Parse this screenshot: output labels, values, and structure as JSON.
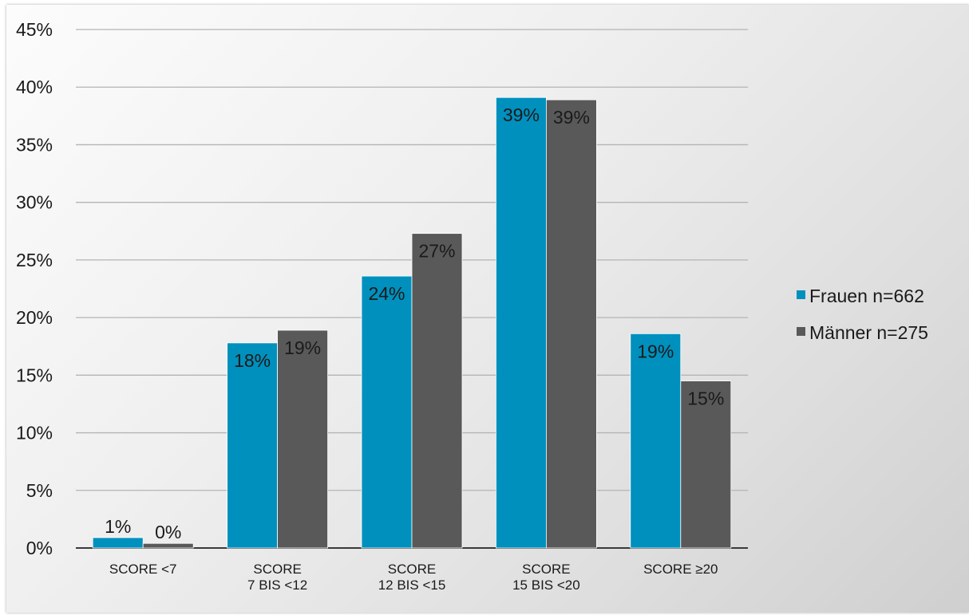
{
  "chart_data": {
    "type": "bar",
    "categories": [
      [
        "SCORE <7"
      ],
      [
        "SCORE",
        "7 BIS <12"
      ],
      [
        "SCORE",
        "12 BIS <15"
      ],
      [
        "SCORE",
        "15 BIS <20"
      ],
      [
        "SCORE ≥20"
      ]
    ],
    "series": [
      {
        "name": "Frauen n=662",
        "color": "#0090BE",
        "values": [
          0.9,
          17.8,
          23.6,
          39.1,
          18.6
        ],
        "labels": [
          "1%",
          "18%",
          "24%",
          "39%",
          "19%"
        ]
      },
      {
        "name": "Männer n=275",
        "color": "#595959",
        "values": [
          0.4,
          18.9,
          27.3,
          38.9,
          14.5
        ],
        "labels": [
          "0%",
          "19%",
          "27%",
          "39%",
          "15%"
        ]
      }
    ],
    "ylim": [
      0,
      45
    ],
    "y_ticks": [
      "0%",
      "5%",
      "10%",
      "15%",
      "20%",
      "25%",
      "30%",
      "35%",
      "40%",
      "45%"
    ],
    "grid": true,
    "legend": "right",
    "title": "",
    "xlabel": "",
    "ylabel": ""
  }
}
